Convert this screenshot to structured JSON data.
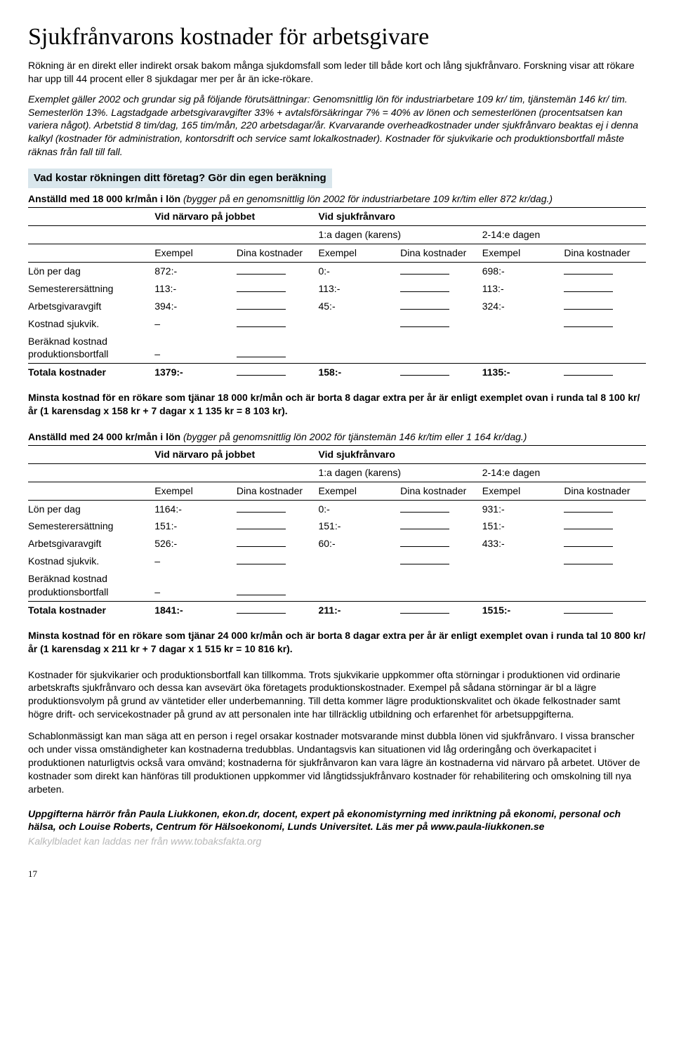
{
  "title": "Sjukfrånvarons kostnader för arbetsgivare",
  "intro": "Rökning är en direkt eller indirekt orsak bakom många sjukdomsfall som leder till både kort och lång sjukfrånvaro. Forskning visar att rökare har upp till 44 procent eller 8 sjukdagar mer per år än icke-rökare.",
  "assumptions": "Exemplet gäller 2002 och grundar sig på följande förutsättningar:\nGenomsnittlig lön för industriarbetare 109 kr/ tim, tjänstemän 146 kr/ tim. Semesterlön 13%. Lagstadgade arbetsgivaravgifter 33% + avtalsförsäkringar 7% = 40% av lönen och semesterlönen (procentsatsen kan variera något). Arbetstid 8 tim/dag, 165 tim/mån, 220 arbetsdagar/år. Kvarvarande overheadkostnader under sjukfrånvaro beaktas ej i denna kalkyl (kostnader för administration, kontorsdrift och service samt lokalkostnader). Kostnader för sjukvikarie och produktionsbortfall måste räknas från fall till fall.",
  "section_label": "Vad kostar rökningen ditt företag? Gör din egen beräkning",
  "table_headers": {
    "col_present": "Vid närvaro på jobbet",
    "col_absent": "Vid sjukfrånvaro",
    "day1": "1:a dagen (karens)",
    "day2_14": "2-14:e dagen",
    "example": "Exempel",
    "your_costs": "Dina kostnader"
  },
  "row_labels": {
    "lon": "Lön per dag",
    "semester": "Semesterersättning",
    "arbgiv": "Arbetsgivaravgift",
    "sjukvik": "Kostnad sjukvik.",
    "prod1": "Beräknad kostnad",
    "prod2": "produktionsbortfall",
    "total": "Totala kostnader"
  },
  "tables": [
    {
      "subtitle_bold": "Anställd med 18 000 kr/mån i lön",
      "subtitle_ital": " (bygger på en genomsnittlig lön 2002 för industriarbetare 109 kr/tim eller 872 kr/dag.)",
      "values": {
        "lon": [
          "872:-",
          "0:-",
          "698:-"
        ],
        "semester": [
          "113:-",
          "113:-",
          "113:-"
        ],
        "arbgiv": [
          "394:-",
          "45:-",
          "324:-"
        ],
        "sjukvik": [
          "–",
          "",
          ""
        ],
        "prod": [
          "–",
          "",
          ""
        ],
        "total": [
          "1379:-",
          "158:-",
          "1135:-"
        ]
      },
      "summary": "Minsta kostnad för en rökare som tjänar 18 000 kr/mån och är borta 8 dagar extra per år är enligt exemplet ovan i runda tal 8 100 kr/år (1 karensdag x 158 kr + 7 dagar x 1 135 kr = 8 103 kr)."
    },
    {
      "subtitle_bold": "Anställd med 24 000 kr/mån i lön",
      "subtitle_ital": " (bygger på genomsnittlig lön 2002 för tjänstemän 146 kr/tim eller 1 164 kr/dag.)",
      "values": {
        "lon": [
          "1164:-",
          "0:-",
          "931:-"
        ],
        "semester": [
          "151:-",
          "151:-",
          "151:-"
        ],
        "arbgiv": [
          "526:-",
          "60:-",
          "433:-"
        ],
        "sjukvik": [
          "–",
          "",
          ""
        ],
        "prod": [
          "–",
          "",
          ""
        ],
        "total": [
          "1841:-",
          "211:-",
          "1515:-"
        ]
      },
      "summary": "Minsta kostnad för en rökare som tjänar 24 000 kr/mån och är borta 8 dagar extra per år är enligt exemplet ovan i runda tal 10 800 kr/år (1 karensdag x 211 kr + 7 dagar x 1 515 kr = 10 816 kr)."
    }
  ],
  "para1": "Kostnader för sjukvikarier och produktionsbortfall kan tillkomma. Trots sjukvikarie uppkommer ofta störningar i produktionen vid ordinarie arbetskrafts sjukfrånvaro och dessa kan avsevärt öka företagets produktionskostnader. Exempel på sådana störningar är bl a lägre produktionsvolym på grund av väntetider eller underbemanning. Till detta kommer lägre produktionskvalitet och ökade felkostnader samt högre drift- och servicekostnader på grund av att personalen inte har tillräcklig utbildning och erfarenhet för arbetsuppgifterna.",
  "para2": "Schablonmässigt kan man säga att en person i regel orsakar kostnader motsvarande minst dubbla lönen vid sjukfrånvaro. I vissa branscher och under vissa omständigheter kan kostnaderna tredubblas. Undantagsvis kan situationen vid låg orderingång och överkapacitet i produktionen naturligtvis också vara omvänd; kostnaderna för sjukfrånvaron kan vara lägre än kostnaderna vid närvaro på arbetet. Utöver de kostnader som direkt kan hänföras till produktionen uppkommer vid långtidssjukfrånvaro kostnader för rehabilitering och omskolning till nya arbeten.",
  "source": "Uppgifterna härrör från Paula Liukkonen, ekon.dr, docent, expert på ekonomistyrning med inriktning på ekonomi, personal och hälsa, och Louise Roberts, Centrum för Hälsoekonomi, Lunds Universitet. Läs mer på www.paula-liukkonen.se",
  "link_note": "Kalkylbladet kan laddas ner från www.tobaksfakta.org",
  "page_number": "17"
}
